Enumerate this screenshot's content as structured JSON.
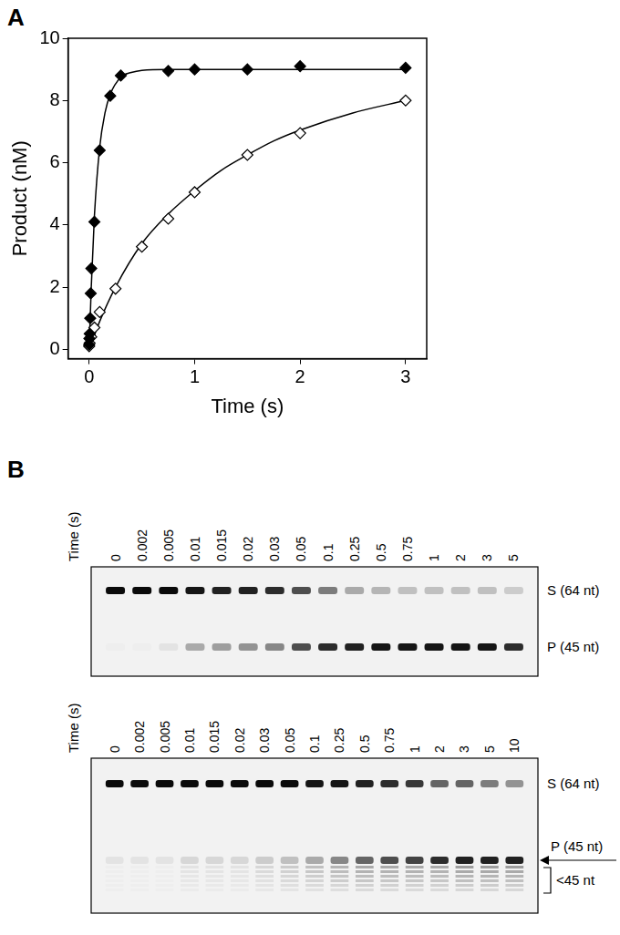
{
  "panel_labels": [
    "A",
    "B"
  ],
  "chart_data": {
    "type": "scatter",
    "x_label": "Time (s)",
    "y_label": "Product (nM)",
    "xlim": [
      -0.2,
      3.2
    ],
    "xticks": [
      0,
      1,
      2,
      3
    ],
    "ylim": [
      -0.3,
      10
    ],
    "yticks": [
      0,
      2,
      4,
      6,
      8,
      10
    ],
    "grid": false,
    "series": [
      {
        "type": "scatter",
        "marker": "filled_diamond",
        "color": "#000000",
        "x": [
          0,
          0.002,
          0.005,
          0.01,
          0.015,
          0.02,
          0.05,
          0.1,
          0.2,
          0.3,
          0.75,
          1,
          1.5,
          2,
          3
        ],
        "values": [
          0.15,
          0.35,
          0.5,
          1.0,
          1.8,
          2.6,
          4.1,
          6.4,
          8.15,
          8.8,
          8.95,
          9.0,
          9.0,
          9.1,
          9.05
        ]
      },
      {
        "type": "line",
        "line_style": "solid",
        "color": "#000000",
        "x": [
          0,
          0.02,
          0.05,
          0.1,
          0.15,
          0.2,
          0.3,
          0.4,
          0.5,
          0.75,
          1,
          2,
          3
        ],
        "values": [
          0,
          2.0,
          4.3,
          6.5,
          7.6,
          8.2,
          8.75,
          8.9,
          8.97,
          9.0,
          9.0,
          9.0,
          9.0
        ]
      },
      {
        "type": "scatter",
        "marker": "open_diamond",
        "color": "#000000",
        "x": [
          0,
          0.005,
          0.02,
          0.05,
          0.1,
          0.25,
          0.5,
          0.75,
          1,
          1.5,
          2,
          3
        ],
        "values": [
          0.1,
          0.2,
          0.4,
          0.7,
          1.2,
          1.95,
          3.3,
          4.2,
          5.05,
          6.25,
          6.95,
          8.0
        ]
      },
      {
        "type": "line",
        "line_style": "solid",
        "color": "#000000",
        "x": [
          0,
          0.1,
          0.25,
          0.5,
          0.75,
          1,
          1.25,
          1.5,
          1.75,
          2,
          2.5,
          3
        ],
        "values": [
          0,
          0.9,
          2.0,
          3.4,
          4.35,
          5.1,
          5.75,
          6.25,
          6.7,
          7.05,
          7.6,
          8.0
        ]
      }
    ]
  },
  "gels": [
    {
      "axis_label": "Time (s)",
      "times": [
        0,
        0.002,
        0.005,
        0.01,
        0.015,
        0.02,
        0.03,
        0.05,
        0.1,
        0.25,
        0.5,
        0.75,
        1,
        2,
        3,
        5
      ],
      "substrate_label": "S (64 nt)",
      "product_label": "P (45 nt)",
      "substrate_intensity": [
        1,
        1,
        1,
        0.95,
        0.9,
        0.9,
        0.85,
        0.7,
        0.5,
        0.3,
        0.25,
        0.2,
        0.2,
        0.2,
        0.2,
        0.15
      ],
      "product_intensity": [
        0,
        0,
        0.05,
        0.3,
        0.35,
        0.4,
        0.45,
        0.7,
        0.85,
        0.9,
        0.95,
        0.95,
        0.95,
        0.95,
        0.95,
        0.85
      ]
    },
    {
      "axis_label": "Time (s)",
      "times": [
        0,
        0.002,
        0.005,
        0.01,
        0.015,
        0.02,
        0.03,
        0.05,
        0.1,
        0.25,
        0.5,
        0.75,
        1,
        2,
        3,
        5,
        10
      ],
      "substrate_label": "S (64 nt)",
      "product_label": "P (45 nt)",
      "short_products_label": "<45 nt",
      "substrate_intensity": [
        1,
        1,
        1,
        1,
        1,
        1,
        1,
        1,
        0.95,
        0.95,
        0.9,
        0.85,
        0.8,
        0.6,
        0.6,
        0.5,
        0.4
      ],
      "product_intensity": [
        0.05,
        0.05,
        0.05,
        0.1,
        0.1,
        0.1,
        0.15,
        0.2,
        0.3,
        0.45,
        0.6,
        0.7,
        0.75,
        0.85,
        0.9,
        0.9,
        0.9
      ],
      "short_products_intensity": [
        0,
        0,
        0,
        0.05,
        0.05,
        0.05,
        0.1,
        0.15,
        0.2,
        0.25,
        0.3,
        0.3,
        0.3,
        0.3,
        0.35,
        0.35,
        0.35
      ]
    }
  ]
}
